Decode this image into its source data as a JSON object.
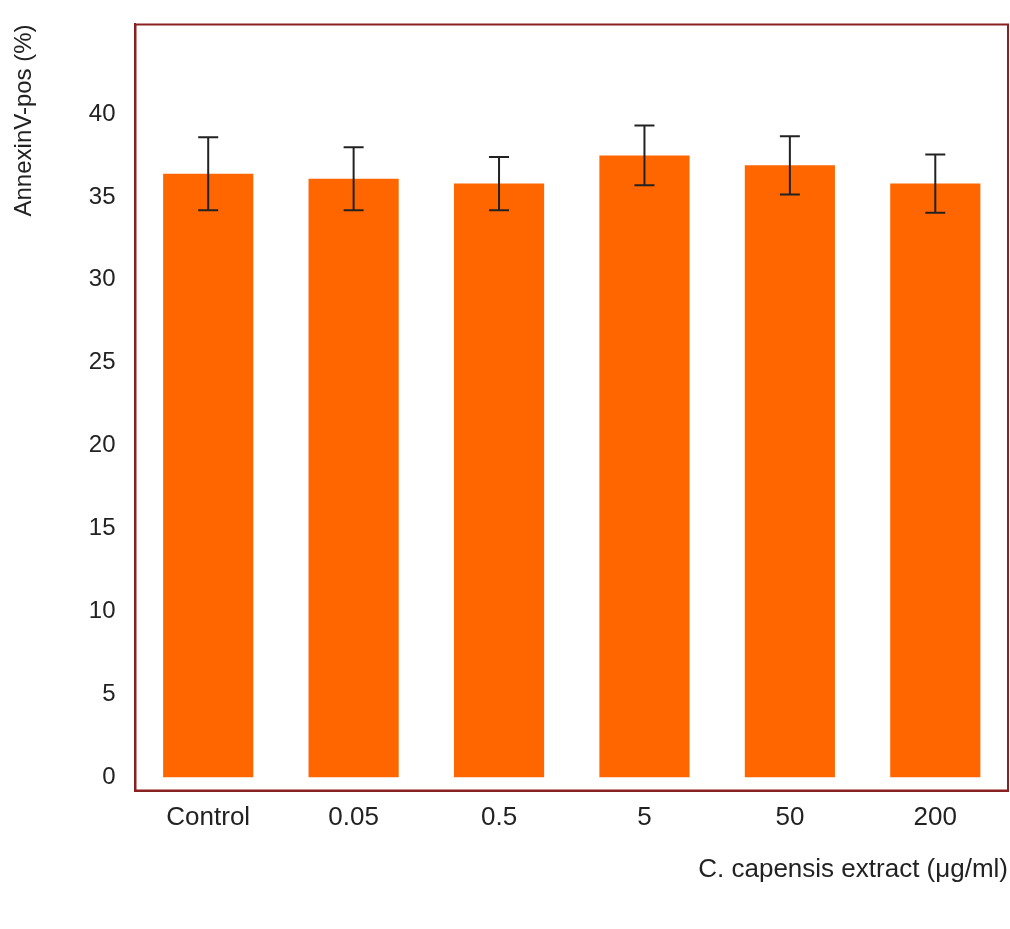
{
  "chart_data": {
    "type": "bar",
    "categories": [
      "Control",
      "0.05",
      "0.5",
      "5",
      "50",
      "200"
    ],
    "values": [
      36.4,
      36.1,
      35.8,
      37.5,
      36.9,
      35.8
    ],
    "errors": [
      2.2,
      1.9,
      1.6,
      1.8,
      1.75,
      1.75
    ],
    "color": "#ff6600",
    "ylim": [
      -0.8,
      45.4
    ],
    "yticks": [
      0,
      5,
      10,
      15,
      20,
      25,
      30,
      35,
      40
    ],
    "xlabel": "C. capensis extract (μg/ml)",
    "ylabel": "AnnexinV-pos (%)",
    "grid": false,
    "legend": false
  }
}
